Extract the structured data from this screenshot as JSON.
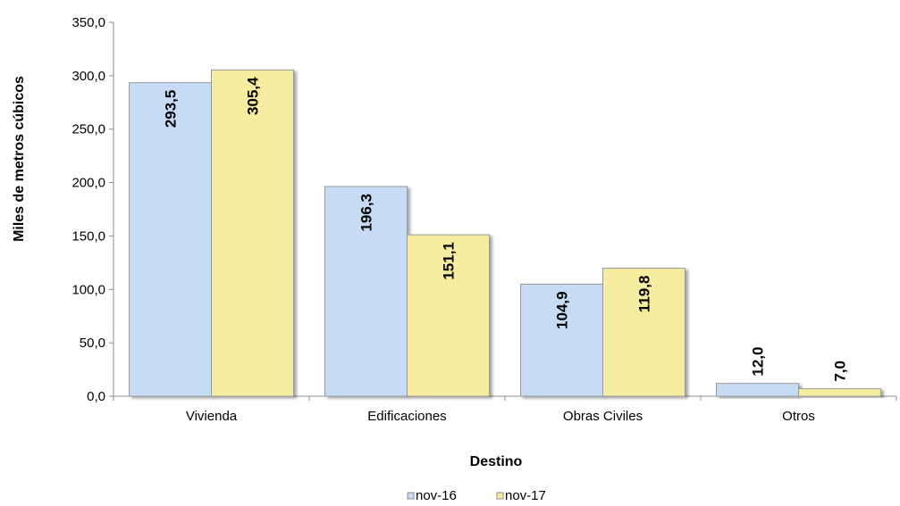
{
  "chart_data": {
    "type": "bar",
    "categories": [
      "Vivienda",
      "Edificaciones",
      "Obras Civiles",
      "Otros"
    ],
    "series": [
      {
        "name": "nov-16",
        "values": [
          293.5,
          196.3,
          104.9,
          12.0
        ],
        "labels": [
          "293,5",
          "196,3",
          "104,9",
          "12,0"
        ],
        "color": "#c6dcf5"
      },
      {
        "name": "nov-17",
        "values": [
          305.4,
          151.1,
          119.8,
          7.0
        ],
        "labels": [
          "305,4",
          "151,1",
          "119,8",
          "7,0"
        ],
        "color": "#f7eda0"
      }
    ],
    "xlabel": "Destino",
    "ylabel": "Miles de metros cúbicos",
    "ylim": [
      0,
      350
    ],
    "yticks": [
      0,
      50,
      100,
      150,
      200,
      250,
      300,
      350
    ],
    "ytick_labels": [
      "0,0",
      "50,0",
      "100,0",
      "150,0",
      "200,0",
      "250,0",
      "300,0",
      "350,0"
    ],
    "grid": false,
    "legend_position": "bottom"
  }
}
